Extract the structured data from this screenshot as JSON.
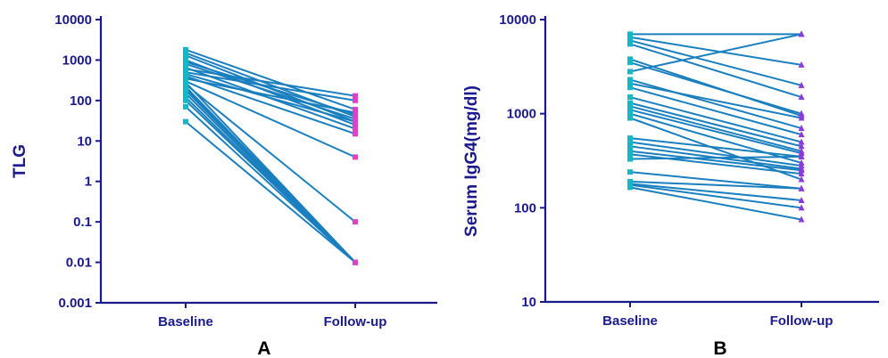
{
  "chart_data": [
    {
      "panel": "A",
      "type": "line",
      "scale": "log",
      "ylabel": "TLG",
      "ylim": [
        0.001,
        10000
      ],
      "y_ticks": [
        "0.001",
        "0.01",
        "0.1",
        "1",
        "10",
        "100",
        "1000",
        "10000"
      ],
      "y_tick_values": [
        0.001,
        0.01,
        0.1,
        1,
        10,
        100,
        1000,
        10000
      ],
      "categories": [
        "Baseline",
        "Follow-up"
      ],
      "baseline_color": "#16b6c6",
      "followup_color": "#e040c8",
      "line_color": "#1a7fbf",
      "pairs": [
        [
          1800,
          60
        ],
        [
          1500,
          40
        ],
        [
          1300,
          30
        ],
        [
          1000,
          25
        ],
        [
          900,
          45
        ],
        [
          800,
          35
        ],
        [
          650,
          20
        ],
        [
          600,
          130
        ],
        [
          500,
          100
        ],
        [
          450,
          30
        ],
        [
          400,
          15
        ],
        [
          350,
          50
        ],
        [
          300,
          4
        ],
        [
          280,
          0.01
        ],
        [
          250,
          0.1
        ],
        [
          220,
          0.01
        ],
        [
          200,
          0.01
        ],
        [
          180,
          0.01
        ],
        [
          150,
          0.01
        ],
        [
          120,
          0.01
        ],
        [
          100,
          0.01
        ],
        [
          70,
          0.01
        ],
        [
          30,
          0.01
        ]
      ]
    },
    {
      "panel": "B",
      "type": "line",
      "scale": "log",
      "ylabel": "Serum IgG4(mg/dl)",
      "ylim": [
        10,
        10000
      ],
      "y_ticks": [
        "10",
        "100",
        "1000",
        "10000"
      ],
      "y_tick_values": [
        10,
        100,
        1000,
        10000
      ],
      "categories": [
        "Baseline",
        "Follow-up"
      ],
      "baseline_color": "#16b6c6",
      "followup_color": "#8a3cd8",
      "line_color": "#1a7fbf",
      "pairs": [
        [
          7000,
          7000
        ],
        [
          6500,
          3300
        ],
        [
          6000,
          2000
        ],
        [
          5500,
          1500
        ],
        [
          3800,
          950
        ],
        [
          3500,
          1000
        ],
        [
          2800,
          7000
        ],
        [
          2300,
          700
        ],
        [
          2100,
          900
        ],
        [
          1900,
          600
        ],
        [
          1500,
          500
        ],
        [
          1300,
          450
        ],
        [
          1200,
          400
        ],
        [
          1100,
          380
        ],
        [
          1000,
          300
        ],
        [
          900,
          200
        ],
        [
          550,
          350
        ],
        [
          500,
          280
        ],
        [
          450,
          260
        ],
        [
          400,
          250
        ],
        [
          370,
          230
        ],
        [
          330,
          350
        ],
        [
          240,
          160
        ],
        [
          190,
          160
        ],
        [
          180,
          120
        ],
        [
          175,
          100
        ],
        [
          165,
          75
        ]
      ]
    }
  ],
  "panel_labels": {
    "a": "A",
    "b": "B"
  }
}
